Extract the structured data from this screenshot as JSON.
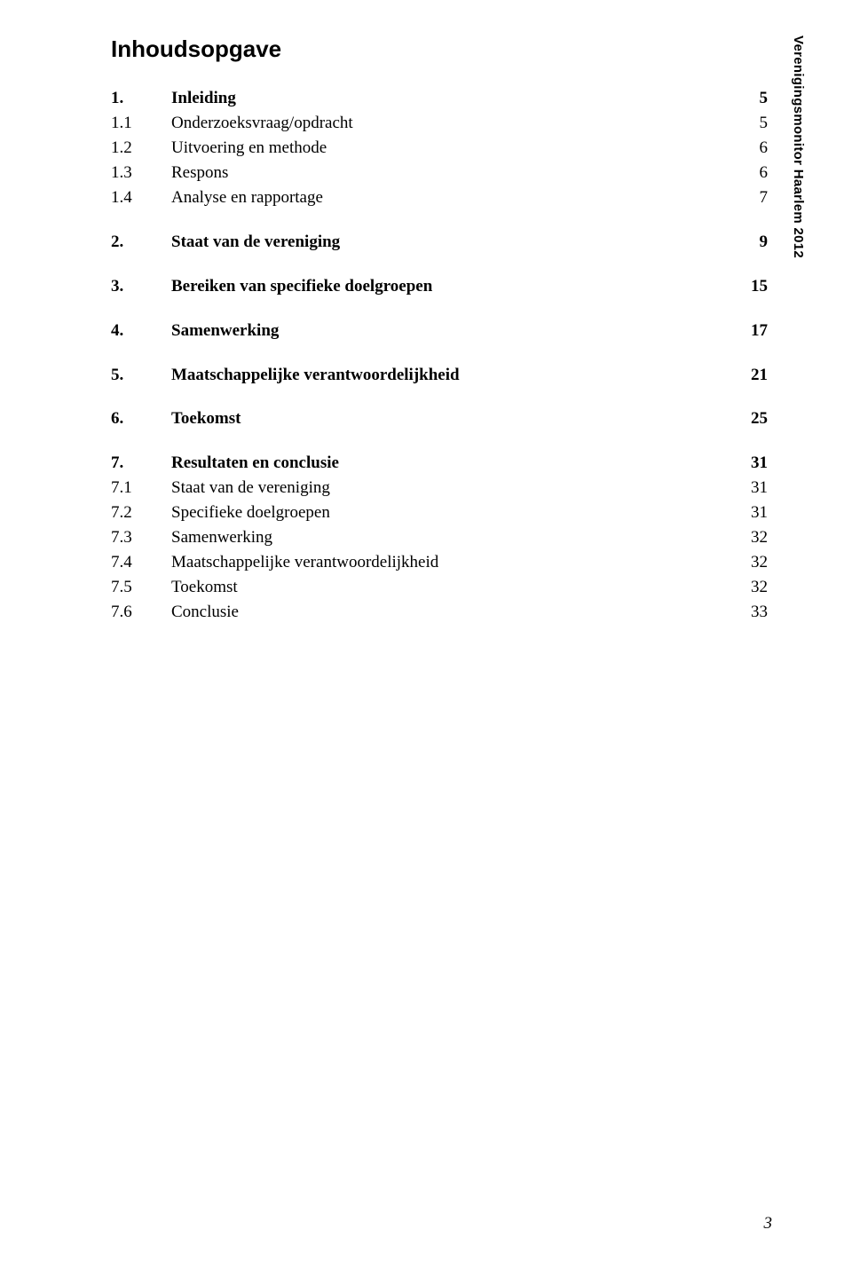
{
  "title": "Inhoudsopgave",
  "sidetext": "Verenigingsmonitor Haarlem 2012",
  "pagenum": "3",
  "rows": [
    {
      "n": "1.",
      "label": "Inleiding",
      "page": "5",
      "bold": true
    },
    {
      "n": "1.1",
      "label": "Onderzoeksvraag/opdracht",
      "page": "5",
      "bold": false
    },
    {
      "n": "1.2",
      "label": "Uitvoering en methode",
      "page": "6",
      "bold": false
    },
    {
      "n": "1.3",
      "label": "Respons",
      "page": "6",
      "bold": false
    },
    {
      "n": "1.4",
      "label": "Analyse en rapportage",
      "page": "7",
      "bold": false
    },
    {
      "n": "2.",
      "label": "Staat van de vereniging",
      "page": "9",
      "bold": true
    },
    {
      "n": "3.",
      "label": "Bereiken van specifieke doelgroepen",
      "page": "15",
      "bold": true
    },
    {
      "n": "4.",
      "label": "Samenwerking",
      "page": "17",
      "bold": true
    },
    {
      "n": "5.",
      "label": "Maatschappelijke verantwoordelijkheid",
      "page": "21",
      "bold": true
    },
    {
      "n": "6.",
      "label": "Toekomst",
      "page": "25",
      "bold": true
    },
    {
      "n": "7.",
      "label": "Resultaten en conclusie",
      "page": "31",
      "bold": true
    },
    {
      "n": "7.1",
      "label": "Staat van de vereniging",
      "page": "31",
      "bold": false
    },
    {
      "n": "7.2",
      "label": "Specifieke doelgroepen",
      "page": "31",
      "bold": false
    },
    {
      "n": "7.3",
      "label": "Samenwerking",
      "page": "32",
      "bold": false
    },
    {
      "n": "7.4",
      "label": "Maatschappelijke verantwoordelijkheid",
      "page": "32",
      "bold": false
    },
    {
      "n": "7.5",
      "label": "Toekomst",
      "page": "32",
      "bold": false
    },
    {
      "n": "7.6",
      "label": "Conclusie",
      "page": "33",
      "bold": false
    }
  ]
}
